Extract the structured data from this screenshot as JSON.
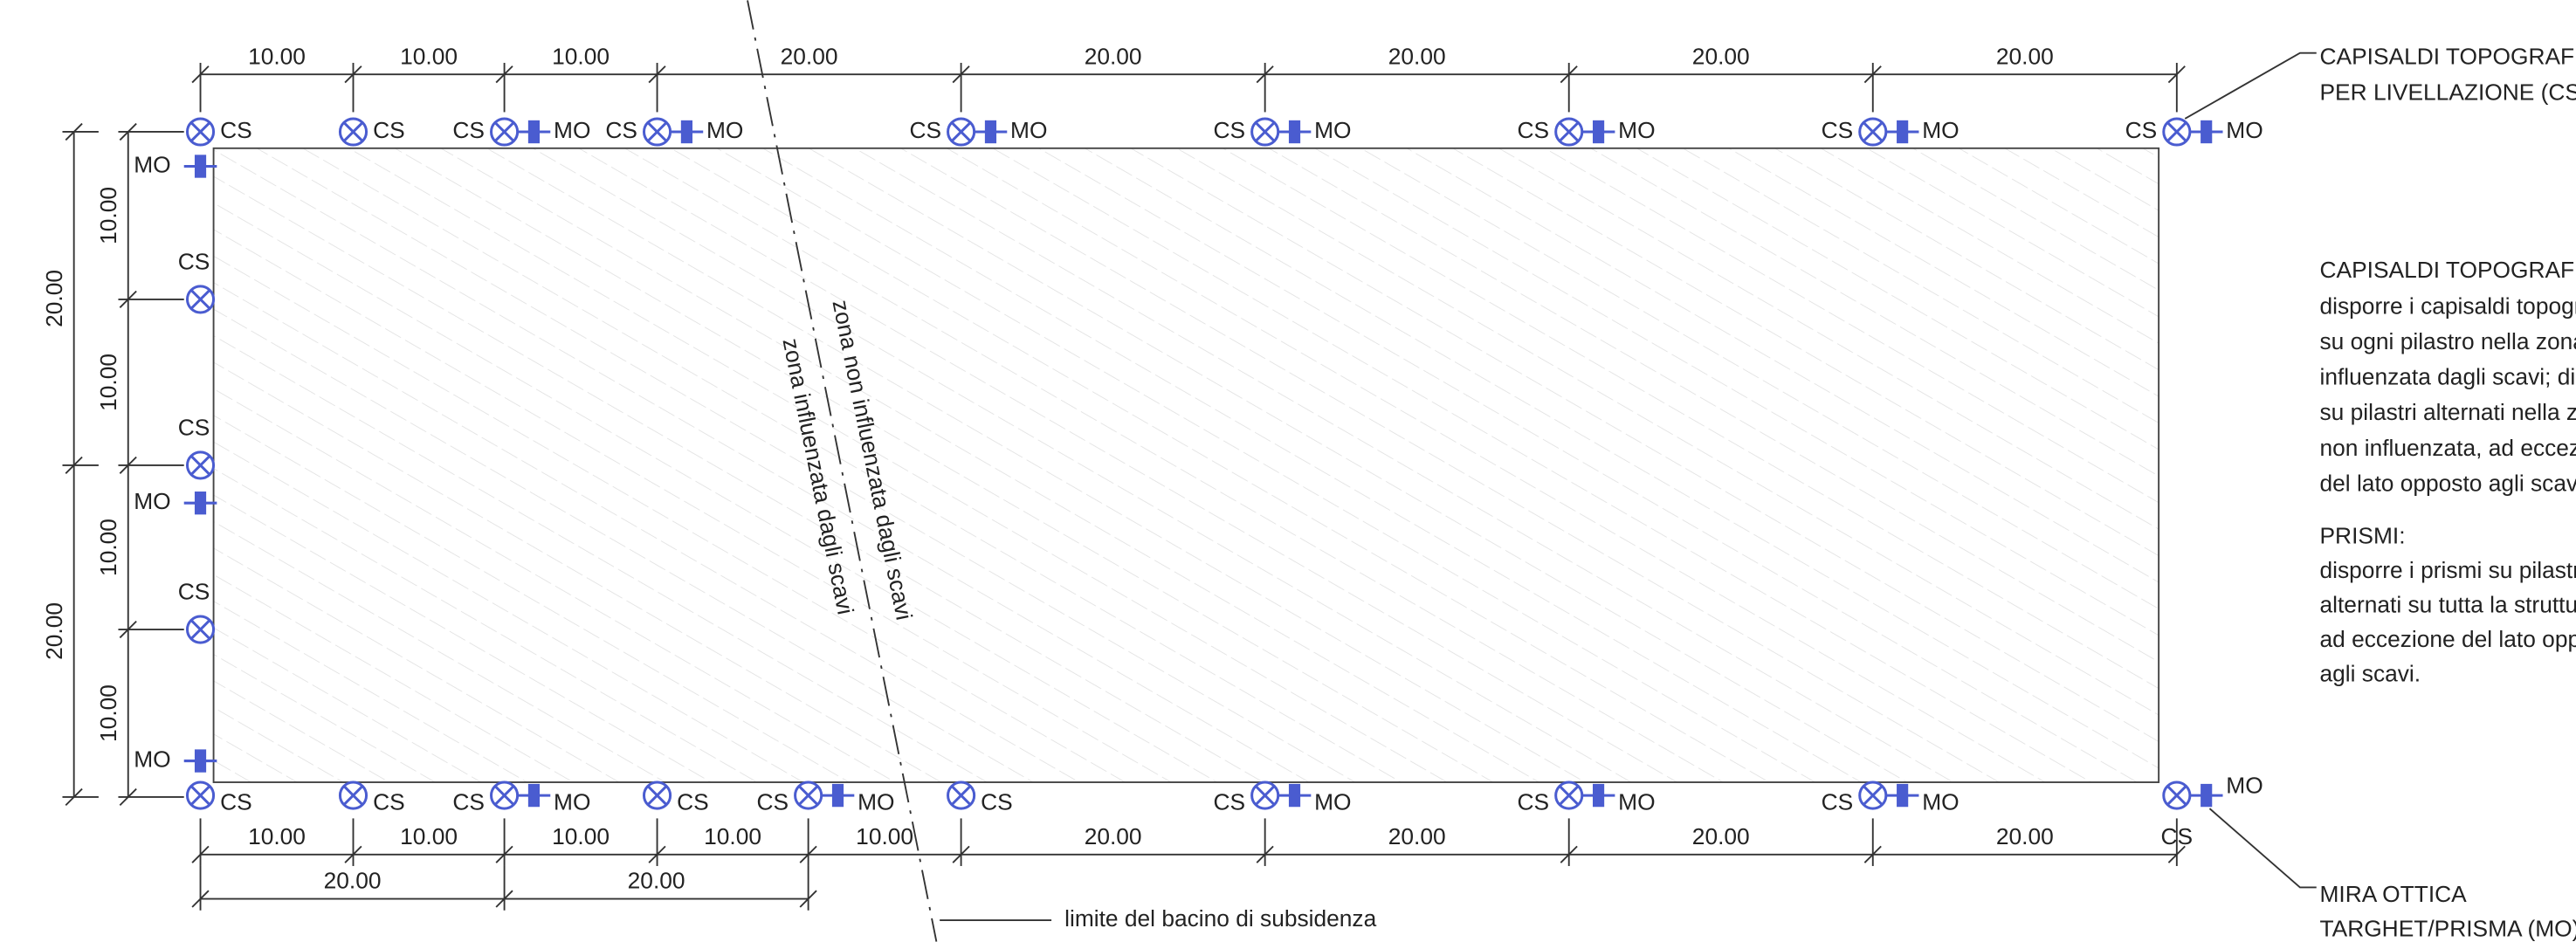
{
  "top_dimensions": [
    "10.00",
    "10.00",
    "10.00",
    "20.00",
    "20.00",
    "20.00",
    "20.00",
    "20.00"
  ],
  "bottom_dimensions": [
    "10.00",
    "10.00",
    "10.00",
    "10.00",
    "10.00",
    "20.00",
    "20.00",
    "20.00",
    "20.00"
  ],
  "bottom_overall_dimensions": [
    "20.00",
    "20.00"
  ],
  "left_outer_dimensions": [
    "20.00",
    "20.00"
  ],
  "left_inner_dimensions": [
    "10.00",
    "10.00",
    "10.00",
    "10.00"
  ],
  "top_markers": [
    {
      "cs": "CS"
    },
    {
      "cs": "CS"
    },
    {
      "cs": "CS",
      "mo": "MO"
    },
    {
      "cs": "CS",
      "mo": "MO"
    },
    {
      "cs": "CS",
      "mo": "MO"
    },
    {
      "cs": "CS",
      "mo": "MO"
    },
    {
      "cs": "CS",
      "mo": "MO"
    },
    {
      "cs": "CS",
      "mo": "MO"
    },
    {
      "cs": "CS",
      "mo": "MO"
    }
  ],
  "bottom_markers": [
    {
      "cs": "CS"
    },
    {
      "cs": "CS"
    },
    {
      "cs": "CS",
      "mo": "MO"
    },
    {
      "cs": "CS"
    },
    {
      "cs": "CS",
      "mo": "MO"
    },
    {
      "cs": "CS"
    },
    {
      "cs": "CS",
      "mo": "MO"
    },
    {
      "cs": "CS",
      "mo": "MO"
    },
    {
      "cs": "CS",
      "mo": "MO"
    },
    {
      "cs": "CS",
      "mo": "MO"
    }
  ],
  "left_cs_markers": [
    "CS",
    "CS",
    "CS"
  ],
  "left_mo_markers": [
    "MO",
    "MO",
    "MO"
  ],
  "zone_labels": [
    "zona non influenzata dagli scavi",
    "zona influenzata dagli scavi"
  ],
  "subsidence_limit_label": "limite del bacino di subsidenza",
  "cs_legend": [
    "CAPISALDI TOPOGRAFICI",
    "PER LIVELLAZIONE (CS)"
  ],
  "mo_legend": [
    "MIRA OTTICA",
    "TARGHET/PRISMA (MO)"
  ],
  "notes": {
    "capisaldi_title": "CAPISALDI TOPOGRAFICI:",
    "capisaldi_lines": [
      "disporre i capisaldi topografici",
      "su ogni pilastro nella zona",
      "influenzata dagli scavi; disporre",
      "su pilastri alternati nella zona",
      "non influenzata, ad eccezione",
      "del lato opposto agli scavi."
    ],
    "prismi_title": "PRISMI:",
    "prismi_lines": [
      "disporre i prismi su pilastri",
      "alternati su tutta la struttura,",
      "ad eccezione del lato opposto",
      "agli scavi."
    ]
  }
}
